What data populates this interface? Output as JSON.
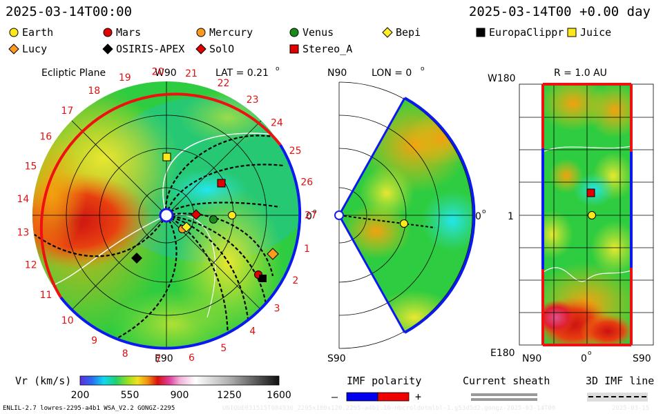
{
  "header": {
    "left_time": "2025-03-14T00:00",
    "right_time": "2025-03-14T00 +0.00 day"
  },
  "legend": [
    {
      "name": "Earth",
      "shape": "circle",
      "color": "#ffe81a"
    },
    {
      "name": "Mars",
      "shape": "circle",
      "color": "#e00000"
    },
    {
      "name": "Mercury",
      "shape": "circle",
      "color": "#ff9a1f"
    },
    {
      "name": "Venus",
      "shape": "circle",
      "color": "#1a8a1a"
    },
    {
      "name": "Bepi",
      "shape": "diamond",
      "color": "#ffee22"
    },
    {
      "name": "EuropaClippr",
      "shape": "square",
      "color": "#000000"
    },
    {
      "name": "Juice",
      "shape": "square",
      "color": "#ffe81a"
    },
    {
      "name": "Lucy",
      "shape": "diamond",
      "color": "#ff9a1f"
    },
    {
      "name": "OSIRIS-APEX",
      "shape": "diamond",
      "color": "#000000"
    },
    {
      "name": "SolO",
      "shape": "diamond",
      "color": "#e00000"
    },
    {
      "name": "Stereo_A",
      "shape": "square",
      "color": "#e00000"
    }
  ],
  "panels": {
    "ecliptic": {
      "title": "Ecliptic Plane",
      "top_label": "W90",
      "lat_label": "LAT = 0.21",
      "lat_deg": "o",
      "right_label": "0",
      "right_deg": "o",
      "bottom_label": "E90",
      "day_labels": [
        "1",
        "2",
        "3",
        "4",
        "5",
        "6",
        "7",
        "8",
        "9",
        "10",
        "11",
        "12",
        "13",
        "14",
        "15",
        "16",
        "17",
        "18",
        "19",
        "20",
        "21",
        "22",
        "23",
        "24",
        "25",
        "26",
        "27"
      ]
    },
    "meridional": {
      "top_label": "N90",
      "lon_label": "LON = 0",
      "lon_deg": "o",
      "right_label": "0",
      "right_deg": "o",
      "bottom_label": "S90"
    },
    "radial": {
      "top_label": "W180",
      "r_label": "R = 1.0 AU",
      "left_mid_label": "1",
      "bottom_left": "E180",
      "x_left": "N90",
      "x_mid": "0",
      "x_mid_deg": "o",
      "x_right": "S90"
    }
  },
  "colorbar": {
    "label": "Vr (km/s)",
    "ticks": [
      "200",
      "550",
      "900",
      "1250",
      "1600"
    ],
    "min": 200,
    "max": 1600
  },
  "imf": {
    "label": "IMF polarity",
    "minus": "–",
    "plus": "+",
    "neg_color": "#0000ee",
    "pos_color": "#ee0000"
  },
  "sheath": {
    "label": "Current sheath"
  },
  "imf3d": {
    "label": "3D IMF line"
  },
  "footer": {
    "left": "ENLIL-2.7 lowres-2295-a4b1 WSA_V2.2 GONGZ-2295",
    "center": "UNIQUE031515T084936_2295x180x120.2295-a4b1.16-nbcroldotmlbl-1.g53d5d2.gongz-2025-03-14T00",
    "right": "2025-03-15"
  },
  "chart_data": [
    {
      "type": "heatmap",
      "title": "Ecliptic Plane",
      "description_quantity": "Vr (km/s)",
      "vmin": 200,
      "vmax": 1600,
      "objects_shown": [
        "Earth",
        "Mars",
        "Mercury",
        "Venus",
        "Bepi",
        "EuropaClippr",
        "Juice",
        "Lucy",
        "OSIRIS-APEX",
        "SolO",
        "Stereo_A"
      ]
    },
    {
      "type": "heatmap",
      "title": "LON = 0",
      "description_quantity": "Vr (km/s)",
      "objects_shown": [
        "Earth"
      ]
    },
    {
      "type": "heatmap",
      "title": "R = 1.0 AU",
      "description_quantity": "Vr (km/s)",
      "objects_shown": [
        "Earth",
        "Stereo_A"
      ]
    }
  ]
}
